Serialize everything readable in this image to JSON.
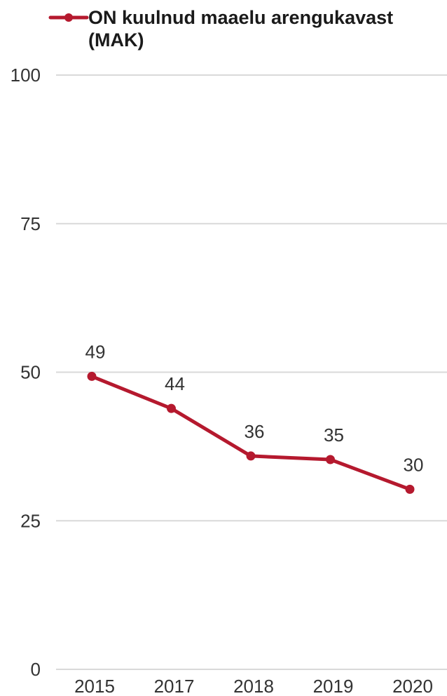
{
  "chart_data": {
    "type": "line",
    "title": "",
    "xlabel": "",
    "ylabel": "",
    "categories": [
      "2015",
      "2017",
      "2018",
      "2019",
      "2020"
    ],
    "series": [
      {
        "name": "ON kuulnud maaelu arengukavast (MAK)",
        "name_lines": [
          "ON kuulnud maaelu arengukavast",
          "(MAK)"
        ],
        "values": [
          49.3,
          43.9,
          35.9,
          35.3,
          30.3
        ],
        "data_labels": [
          "49",
          "44",
          "36",
          "35",
          "30"
        ],
        "color": "#b5192e"
      }
    ],
    "ylim": [
      0,
      100
    ],
    "yticks": [
      "0",
      "25",
      "50",
      "75",
      "100"
    ],
    "grid": true,
    "legend_position": "top-left"
  }
}
